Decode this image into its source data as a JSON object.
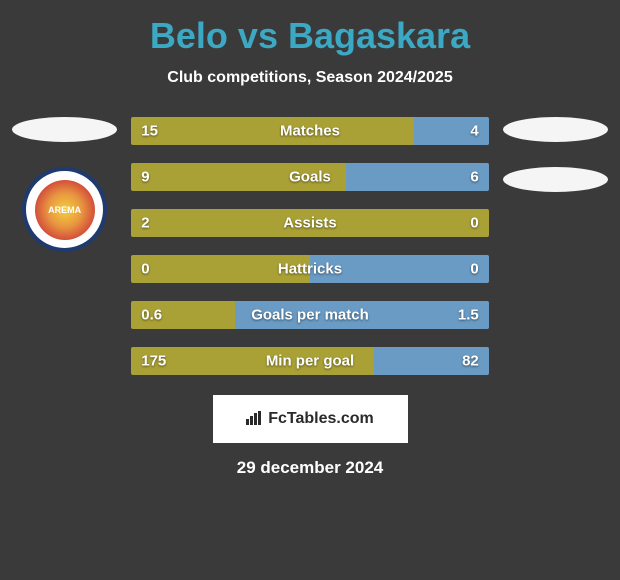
{
  "title": "Belo vs Bagaskara",
  "subtitle": "Club competitions, Season 2024/2025",
  "stats": [
    {
      "label": "Matches",
      "left_val": "15",
      "right_val": "4",
      "left_pct": 79,
      "right_pct": 21
    },
    {
      "label": "Goals",
      "left_val": "9",
      "right_val": "6",
      "left_pct": 60,
      "right_pct": 40
    },
    {
      "label": "Assists",
      "left_val": "2",
      "right_val": "0",
      "left_pct": 100,
      "right_pct": 0
    },
    {
      "label": "Hattricks",
      "left_val": "0",
      "right_val": "0",
      "left_pct": 50,
      "right_pct": 50
    },
    {
      "label": "Goals per match",
      "left_val": "0.6",
      "right_val": "1.5",
      "left_pct": 29,
      "right_pct": 71
    },
    {
      "label": "Min per goal",
      "left_val": "175",
      "right_val": "82",
      "left_pct": 68,
      "right_pct": 32
    }
  ],
  "colors": {
    "title": "#3ba8c4",
    "bar_left": "#aaa136",
    "bar_right": "#6a9bc4",
    "background": "#3a3a3a",
    "oval": "#f5f5f5"
  },
  "left_club": {
    "name": "AREMA"
  },
  "footer_brand": "FcTables.com",
  "date": "29 december 2024"
}
